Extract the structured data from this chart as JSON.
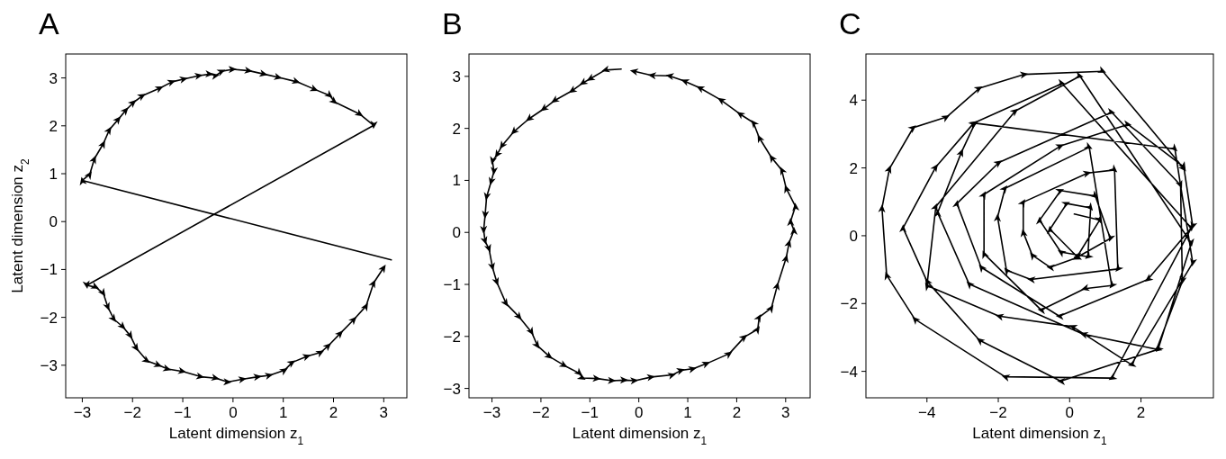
{
  "chart_data": [
    {
      "type": "line",
      "title": "A",
      "xlabel": "Latent dimension z$_{1}$",
      "ylabel": "Latent dimension z$_{2}$",
      "xlim": [
        -3.33,
        3.46
      ],
      "ylim": [
        -3.68,
        3.5
      ],
      "xticks": [
        {
          "value": -3,
          "label": "−3"
        },
        {
          "value": -2,
          "label": "−2"
        },
        {
          "value": -1,
          "label": "−1"
        },
        0,
        1,
        2,
        3
      ],
      "yticks": [
        {
          "value": -3,
          "label": "−3"
        },
        {
          "value": -2,
          "label": "−2"
        },
        {
          "value": -1,
          "label": "−1"
        },
        0,
        1,
        2,
        3
      ],
      "grid": false,
      "line_style": "solid",
      "series": [
        {
          "color": "#000000",
          "x": [
            3.15,
            -3.0,
            -2.85,
            -2.76,
            -2.58,
            -2.46,
            -2.28,
            -2.13,
            -1.98,
            -1.8,
            -1.45,
            -1.21,
            -0.97,
            -0.67,
            -0.46,
            -0.34,
            -0.22,
            0.0,
            0.32,
            0.62,
            0.91,
            1.27,
            1.63,
            1.93,
            2.02,
            2.53,
            2.8,
            -2.91,
            -2.73,
            -2.58,
            -2.49,
            -2.37,
            -2.19,
            -2.04,
            -1.92,
            -1.71,
            -1.48,
            -1.3,
            -1.0,
            -0.64,
            -0.34,
            -0.1,
            0.2,
            0.5,
            0.73,
            1.03,
            1.18,
            1.48,
            1.75,
            1.9,
            2.14,
            2.41,
            2.65,
            2.8,
            3.0
          ],
          "values": [
            -0.8,
            0.86,
            0.99,
            1.31,
            1.63,
            1.92,
            2.14,
            2.33,
            2.49,
            2.63,
            2.79,
            2.92,
            2.98,
            3.05,
            3.08,
            3.05,
            3.14,
            3.18,
            3.15,
            3.08,
            3.01,
            2.92,
            2.76,
            2.63,
            2.5,
            2.24,
            2.01,
            -1.33,
            -1.37,
            -1.5,
            -1.79,
            -2.04,
            -2.2,
            -2.39,
            -2.65,
            -2.91,
            -3.0,
            -3.08,
            -3.13,
            -3.24,
            -3.27,
            -3.35,
            -3.29,
            -3.24,
            -3.21,
            -3.1,
            -2.94,
            -2.81,
            -2.73,
            -2.59,
            -2.33,
            -2.04,
            -1.76,
            -1.28,
            -0.96
          ]
        }
      ]
    },
    {
      "type": "line",
      "title": "B",
      "xlabel": "Latent dimension z$_{1}$",
      "xlim": [
        -3.47,
        3.5
      ],
      "ylim": [
        -3.18,
        3.43
      ],
      "xticks": [
        {
          "value": -3,
          "label": "−3"
        },
        {
          "value": -2,
          "label": "−2"
        },
        {
          "value": -1,
          "label": "−1"
        },
        0,
        1,
        2,
        3
      ],
      "yticks": [
        {
          "value": -3,
          "label": "−3"
        },
        {
          "value": -2,
          "label": "−2"
        },
        {
          "value": -1,
          "label": "−1"
        },
        0,
        1,
        2,
        3
      ],
      "grid": false,
      "line_style": "solid",
      "series": [
        {
          "color": "#000000",
          "x": [
            -0.36,
            -0.69,
            -1.0,
            -1.15,
            -1.37,
            -1.73,
            -1.95,
            -2.25,
            -2.56,
            -2.8,
            -2.9,
            -2.99,
            -2.96,
            -3.02,
            -3.11,
            -3.14,
            -3.17,
            -3.14,
            -3.06,
            -2.99,
            -2.9,
            -2.71,
            -2.44,
            -2.19,
            -2.07,
            -1.82,
            -1.52,
            -1.21,
            -1.15,
            -0.85,
            -0.54,
            -0.29,
            -0.08,
            0.26,
            0.69,
            0.87,
            1.11,
            1.39,
            1.85,
            2.16,
            2.43,
            2.46,
            2.71,
            2.83,
            3.01,
            3.07,
            3.17,
            3.1,
            3.2,
            3.01,
            2.92,
            2.71,
            2.46,
            2.34,
            2.06,
            1.67,
            1.24,
            0.93,
            0.62,
            0.26,
            -0.11
          ],
          "values": [
            3.14,
            3.12,
            2.95,
            2.87,
            2.72,
            2.53,
            2.37,
            2.18,
            1.93,
            1.66,
            1.49,
            1.37,
            1.17,
            0.97,
            0.68,
            0.33,
            0.04,
            -0.17,
            -0.32,
            -0.67,
            -0.96,
            -1.37,
            -1.63,
            -1.92,
            -2.18,
            -2.39,
            -2.56,
            -2.71,
            -2.8,
            -2.81,
            -2.85,
            -2.84,
            -2.85,
            -2.78,
            -2.74,
            -2.65,
            -2.62,
            -2.52,
            -2.33,
            -2.01,
            -1.86,
            -1.63,
            -1.45,
            -1.02,
            -0.49,
            -0.2,
            0.04,
            0.21,
            0.5,
            0.85,
            1.2,
            1.44,
            1.82,
            2.11,
            2.28,
            2.55,
            2.78,
            2.91,
            3.01,
            3.02,
            3.1
          ]
        }
      ]
    },
    {
      "type": "line",
      "title": "C",
      "xlabel": "Latent dimension z$_{1}$",
      "xlim": [
        -5.71,
        4.03
      ],
      "ylim": [
        -4.78,
        5.36
      ],
      "xticks": [
        {
          "value": -4,
          "label": "−4"
        },
        {
          "value": -2,
          "label": "−2"
        },
        0,
        2
      ],
      "yticks": [
        {
          "value": -4,
          "label": "−4"
        },
        {
          "value": -2,
          "label": "−2"
        },
        0,
        2,
        4
      ],
      "grid": false,
      "line_style": "solid",
      "series": [
        {
          "color": "#000000",
          "x": [
            0.13,
            0.84,
            0.21,
            -0.55,
            -0.08,
            0.59,
            0.51,
            -0.25,
            -0.84,
            -0.25,
            0.72,
            1.14,
            0.17,
            -0.55,
            -1.05,
            -1.3,
            -1.3,
            0.51,
            1.26,
            1.35,
            -1.09,
            -1.77,
            -2.02,
            -1.81,
            0.55,
            1.18,
            0.42,
            -0.8,
            -2.4,
            -2.4,
            -0.25,
            1.64,
            3.2,
            3.45,
            2.19,
            -0.29,
            -2.48,
            -3.16,
            -1.98,
            1.18,
            3.11,
            3.16,
            2.44,
            0.38,
            -2.82,
            -3.7,
            -3.03,
            -2.65,
            2.95,
            3.45,
            1.73,
            0.08,
            -1.98,
            -4.0,
            -3.75,
            -1.52,
            0.29,
            3.41,
            2.48,
            -0.25,
            -2.53,
            -4.0,
            -4.67,
            -3.75,
            -2.69,
            -0.21,
            3.41,
            1.18,
            -1.81,
            -4.34,
            -5.13,
            -5.26,
            -5.05,
            -4.38,
            -3.45,
            -2.53,
            -1.26,
            0.93,
            3.2
          ],
          "values": [
            0.64,
            0.46,
            -0.62,
            0.19,
            0.95,
            0.82,
            -0.62,
            -0.48,
            0.46,
            1.33,
            1.17,
            -0.08,
            -0.66,
            -0.93,
            -0.57,
            0.1,
            0.99,
            1.85,
            1.94,
            -0.98,
            -1.29,
            -1.02,
            0.55,
            1.4,
            2.61,
            -1.47,
            -1.56,
            -2.19,
            -0.53,
            1.22,
            2.65,
            3.28,
            2.03,
            0.28,
            -1.29,
            -2.37,
            -0.93,
            0.95,
            2.16,
            3.64,
            1.49,
            -1.34,
            -3.35,
            -2.9,
            -1.42,
            0.68,
            2.47,
            3.32,
            2.56,
            -0.8,
            -3.8,
            -2.68,
            -2.37,
            -1.47,
            0.86,
            3.68,
            4.71,
            -0.22,
            -3.35,
            -4.29,
            -3.08,
            -1.34,
            0.23,
            2.03,
            3.32,
            4.49,
            0.23,
            -4.2,
            -4.16,
            -2.46,
            -1.16,
            0.82,
            1.98,
            3.19,
            3.5,
            4.35,
            4.76,
            4.85,
            1.98
          ]
        }
      ]
    }
  ]
}
